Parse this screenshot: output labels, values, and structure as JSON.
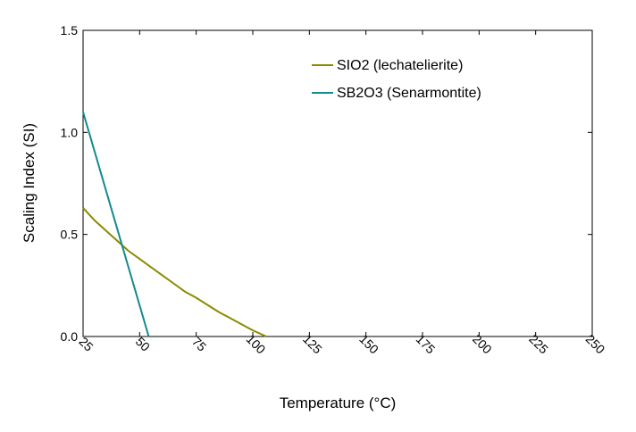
{
  "chart_data": {
    "type": "line",
    "xlabel": "Temperature (°C)",
    "ylabel": "Scaling Index (SI)",
    "xlim": [
      25,
      250
    ],
    "ylim": [
      0.0,
      1.5
    ],
    "x_ticks": [
      25,
      50,
      75,
      100,
      125,
      150,
      175,
      200,
      225,
      250
    ],
    "x_tick_labels": [
      "25",
      "50",
      "75",
      "100",
      "125",
      "150",
      "175",
      "200",
      "225",
      "250"
    ],
    "y_ticks": [
      0.0,
      0.5,
      1.0,
      1.5
    ],
    "y_tick_labels": [
      "0.0",
      "0.5",
      "1.0",
      "1.5"
    ],
    "grid": false,
    "legend_position": "top-right",
    "series": [
      {
        "name": "SIO2 (lechatelierite)",
        "color": "#8b8b00",
        "points": [
          [
            25,
            0.63
          ],
          [
            30,
            0.57
          ],
          [
            35,
            0.52
          ],
          [
            40,
            0.47
          ],
          [
            45,
            0.42
          ],
          [
            50,
            0.38
          ],
          [
            55,
            0.34
          ],
          [
            60,
            0.3
          ],
          [
            65,
            0.26
          ],
          [
            70,
            0.22
          ],
          [
            75,
            0.19
          ],
          [
            80,
            0.155
          ],
          [
            85,
            0.12
          ],
          [
            90,
            0.09
          ],
          [
            95,
            0.06
          ],
          [
            100,
            0.03
          ],
          [
            106,
            0.0
          ]
        ]
      },
      {
        "name": "SB2O3 (Senarmontite)",
        "color": "#128a8e",
        "points": [
          [
            25,
            1.1
          ],
          [
            54,
            0.0
          ]
        ]
      }
    ]
  }
}
